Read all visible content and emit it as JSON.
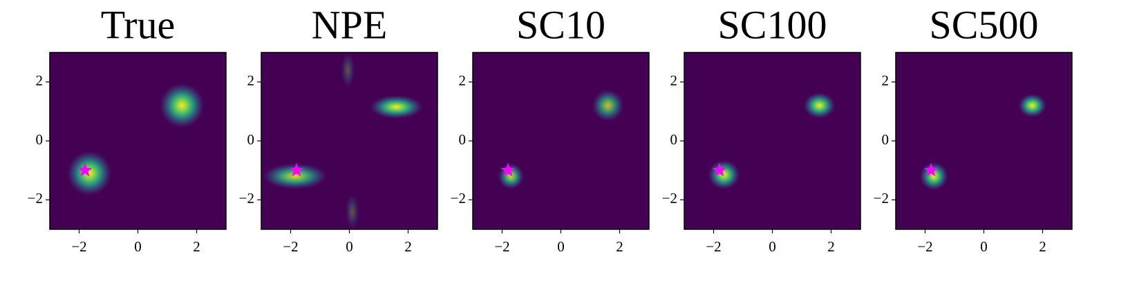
{
  "chart_data": [
    {
      "type": "density",
      "title": "True",
      "background": "#440154",
      "xlim": [
        -3,
        3
      ],
      "ylim": [
        -3,
        3
      ],
      "xticks": [
        {
          "value": -2,
          "label": "−2"
        },
        0,
        2
      ],
      "yticks": [
        {
          "value": -2,
          "label": "−2"
        },
        0,
        2
      ],
      "modes": [
        {
          "x": 1.5,
          "y": 1.2,
          "sx": 0.38,
          "sy": 0.38,
          "weight": 1
        },
        {
          "x": -1.65,
          "y": -1.1,
          "sx": 0.38,
          "sy": 0.38,
          "weight": 1
        }
      ],
      "marker": {
        "x": -1.8,
        "y": -1.0,
        "color": "#ff00ff"
      }
    },
    {
      "type": "density",
      "title": "NPE",
      "background": "#440154",
      "xlim": [
        -3,
        3
      ],
      "ylim": [
        -3,
        3
      ],
      "xticks": [
        {
          "value": -2,
          "label": "−2"
        },
        0,
        2
      ],
      "yticks": [
        {
          "value": -2,
          "label": "−2"
        },
        0,
        2
      ],
      "modes": [
        {
          "x": 1.6,
          "y": 1.15,
          "sx": 0.45,
          "sy": 0.2,
          "weight": 1
        },
        {
          "x": -1.85,
          "y": -1.2,
          "sx": 0.55,
          "sy": 0.22,
          "weight": 0.9
        },
        {
          "x": -0.05,
          "y": 2.4,
          "sx": 0.12,
          "sy": 0.3,
          "weight": 0.3
        },
        {
          "x": 0.1,
          "y": -2.4,
          "sx": 0.12,
          "sy": 0.3,
          "weight": 0.3
        }
      ],
      "marker": {
        "x": -1.8,
        "y": -1.0,
        "color": "#ff00ff"
      }
    },
    {
      "type": "density",
      "title": "SC10",
      "background": "#440154",
      "xlim": [
        -3,
        3
      ],
      "ylim": [
        -3,
        3
      ],
      "xticks": [
        {
          "value": -2,
          "label": "−2"
        },
        0,
        2
      ],
      "yticks": [
        {
          "value": -2,
          "label": "−2"
        },
        0,
        2
      ],
      "modes": [
        {
          "x": 1.6,
          "y": 1.2,
          "sx": 0.27,
          "sy": 0.27,
          "weight": 0.8
        },
        {
          "x": -1.7,
          "y": -1.2,
          "sx": 0.22,
          "sy": 0.22,
          "weight": 0.9
        }
      ],
      "marker": {
        "x": -1.8,
        "y": -1.0,
        "color": "#ff00ff"
      }
    },
    {
      "type": "density",
      "title": "SC100",
      "background": "#440154",
      "xlim": [
        -3,
        3
      ],
      "ylim": [
        -3,
        3
      ],
      "xticks": [
        {
          "value": -2,
          "label": "−2"
        },
        0,
        2
      ],
      "yticks": [
        {
          "value": -2,
          "label": "−2"
        },
        0,
        2
      ],
      "modes": [
        {
          "x": 1.6,
          "y": 1.2,
          "sx": 0.27,
          "sy": 0.22,
          "weight": 1
        },
        {
          "x": -1.65,
          "y": -1.15,
          "sx": 0.27,
          "sy": 0.25,
          "weight": 1
        }
      ],
      "marker": {
        "x": -1.8,
        "y": -1.0,
        "color": "#ff00ff"
      }
    },
    {
      "type": "density",
      "title": "SC500",
      "background": "#440154",
      "xlim": [
        -3,
        3
      ],
      "ylim": [
        -3,
        3
      ],
      "xticks": [
        {
          "value": -2,
          "label": "−2"
        },
        0,
        2
      ],
      "yticks": [
        {
          "value": -2,
          "label": "−2"
        },
        0,
        2
      ],
      "modes": [
        {
          "x": 1.65,
          "y": 1.2,
          "sx": 0.24,
          "sy": 0.2,
          "weight": 1
        },
        {
          "x": -1.7,
          "y": -1.2,
          "sx": 0.24,
          "sy": 0.24,
          "weight": 1
        }
      ],
      "marker": {
        "x": -1.8,
        "y": -1.0,
        "color": "#ff00ff"
      }
    }
  ]
}
